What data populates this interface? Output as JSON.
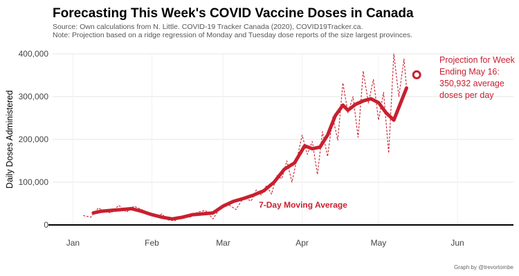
{
  "chart_data": {
    "type": "line",
    "title": "Forecasting This Week's COVID Vaccine Doses in Canada",
    "subtitle_lines": [
      "Source: Own calculations from N. Little. COVID-19 Tracker Canada (2020), COVID19Tracker.ca.",
      "Note: Projection based on a ridge regression of Monday and Tuesday dose reports of the size largest provinces."
    ],
    "ylabel": "Daily Doses Administered",
    "xlabel": "",
    "ylim": [
      0,
      400000
    ],
    "yticks": [
      0,
      100000,
      200000,
      300000,
      400000
    ],
    "ytick_labels": [
      "0",
      "100,000",
      "200,000",
      "300,000",
      "400,000"
    ],
    "x_range_days": [
      "2020-12-24",
      "2021-06-23"
    ],
    "xticks": [
      {
        "date": "2021-01-01",
        "label": "Jan"
      },
      {
        "date": "2021-02-01",
        "label": "Feb"
      },
      {
        "date": "2021-03-01",
        "label": "Mar"
      },
      {
        "date": "2021-04-01",
        "label": "Apr"
      },
      {
        "date": "2021-05-01",
        "label": "May"
      },
      {
        "date": "2021-06-01",
        "label": "Jun"
      }
    ],
    "grid": "horizontal",
    "colors": {
      "series": "#c8202f",
      "grid": "#e6e6e6",
      "zero_line": "#000000"
    },
    "series": [
      {
        "style": "dashed-thin",
        "points": [
          [
            "2021-01-05",
            22000
          ],
          [
            "2021-01-08",
            18000
          ],
          [
            "2021-01-11",
            40000
          ],
          [
            "2021-01-13",
            32000
          ],
          [
            "2021-01-16",
            28000
          ],
          [
            "2021-01-19",
            46000
          ],
          [
            "2021-01-22",
            30000
          ],
          [
            "2021-01-25",
            44000
          ],
          [
            "2021-01-28",
            36000
          ],
          [
            "2021-01-31",
            28000
          ],
          [
            "2021-02-03",
            20000
          ],
          [
            "2021-02-05",
            26000
          ],
          [
            "2021-02-07",
            12000
          ],
          [
            "2021-02-10",
            10000
          ],
          [
            "2021-02-13",
            22000
          ],
          [
            "2021-02-16",
            18000
          ],
          [
            "2021-02-19",
            30000
          ],
          [
            "2021-02-22",
            34000
          ],
          [
            "2021-02-25",
            14000
          ],
          [
            "2021-02-28",
            42000
          ],
          [
            "2021-03-03",
            48000
          ],
          [
            "2021-03-06",
            36000
          ],
          [
            "2021-03-09",
            64000
          ],
          [
            "2021-03-12",
            56000
          ],
          [
            "2021-03-14",
            82000
          ],
          [
            "2021-03-16",
            70000
          ],
          [
            "2021-03-18",
            92000
          ],
          [
            "2021-03-20",
            72000
          ],
          [
            "2021-03-22",
            115000
          ],
          [
            "2021-03-24",
            108000
          ],
          [
            "2021-03-26",
            150000
          ],
          [
            "2021-03-28",
            100000
          ],
          [
            "2021-03-30",
            155000
          ],
          [
            "2021-04-01",
            210000
          ],
          [
            "2021-04-03",
            165000
          ],
          [
            "2021-04-05",
            195000
          ],
          [
            "2021-04-07",
            118000
          ],
          [
            "2021-04-09",
            218000
          ],
          [
            "2021-04-11",
            160000
          ],
          [
            "2021-04-13",
            252000
          ],
          [
            "2021-04-15",
            198000
          ],
          [
            "2021-04-17",
            332000
          ],
          [
            "2021-04-19",
            262000
          ],
          [
            "2021-04-21",
            300000
          ],
          [
            "2021-04-23",
            205000
          ],
          [
            "2021-04-25",
            360000
          ],
          [
            "2021-04-27",
            285000
          ],
          [
            "2021-04-29",
            340000
          ],
          [
            "2021-05-01",
            245000
          ],
          [
            "2021-05-03",
            310000
          ],
          [
            "2021-05-05",
            168000
          ],
          [
            "2021-05-07",
            400000
          ],
          [
            "2021-05-09",
            300000
          ],
          [
            "2021-05-11",
            388000
          ],
          [
            "2021-05-12",
            320000
          ]
        ]
      },
      {
        "name": "7-Day Moving Average",
        "style": "thick-solid",
        "points": [
          [
            "2021-01-09",
            28000
          ],
          [
            "2021-01-12",
            32000
          ],
          [
            "2021-01-16",
            34000
          ],
          [
            "2021-01-20",
            36000
          ],
          [
            "2021-01-24",
            38000
          ],
          [
            "2021-01-28",
            32000
          ],
          [
            "2021-02-01",
            24000
          ],
          [
            "2021-02-05",
            18000
          ],
          [
            "2021-02-09",
            14000
          ],
          [
            "2021-02-13",
            18000
          ],
          [
            "2021-02-17",
            24000
          ],
          [
            "2021-02-21",
            26000
          ],
          [
            "2021-02-25",
            28000
          ],
          [
            "2021-03-01",
            44000
          ],
          [
            "2021-03-05",
            55000
          ],
          [
            "2021-03-09",
            62000
          ],
          [
            "2021-03-13",
            70000
          ],
          [
            "2021-03-17",
            80000
          ],
          [
            "2021-03-21",
            100000
          ],
          [
            "2021-03-25",
            130000
          ],
          [
            "2021-03-29",
            145000
          ],
          [
            "2021-04-02",
            185000
          ],
          [
            "2021-04-05",
            178000
          ],
          [
            "2021-04-08",
            182000
          ],
          [
            "2021-04-11",
            210000
          ],
          [
            "2021-04-14",
            255000
          ],
          [
            "2021-04-17",
            280000
          ],
          [
            "2021-04-19",
            268000
          ],
          [
            "2021-04-22",
            282000
          ],
          [
            "2021-04-25",
            290000
          ],
          [
            "2021-04-28",
            295000
          ],
          [
            "2021-05-01",
            286000
          ],
          [
            "2021-05-04",
            262000
          ],
          [
            "2021-05-07",
            245000
          ],
          [
            "2021-05-10",
            290000
          ],
          [
            "2021-05-12",
            320000
          ]
        ]
      }
    ],
    "projection": {
      "date": "2021-05-16",
      "value": 350932
    },
    "annotations": {
      "moving_avg_label": "7-Day Moving Average",
      "projection_lines": [
        "Projection for Week",
        "Ending May 16:",
        "350,932 average",
        "doses per day"
      ]
    },
    "credit": "Graph by @trevortombe"
  }
}
